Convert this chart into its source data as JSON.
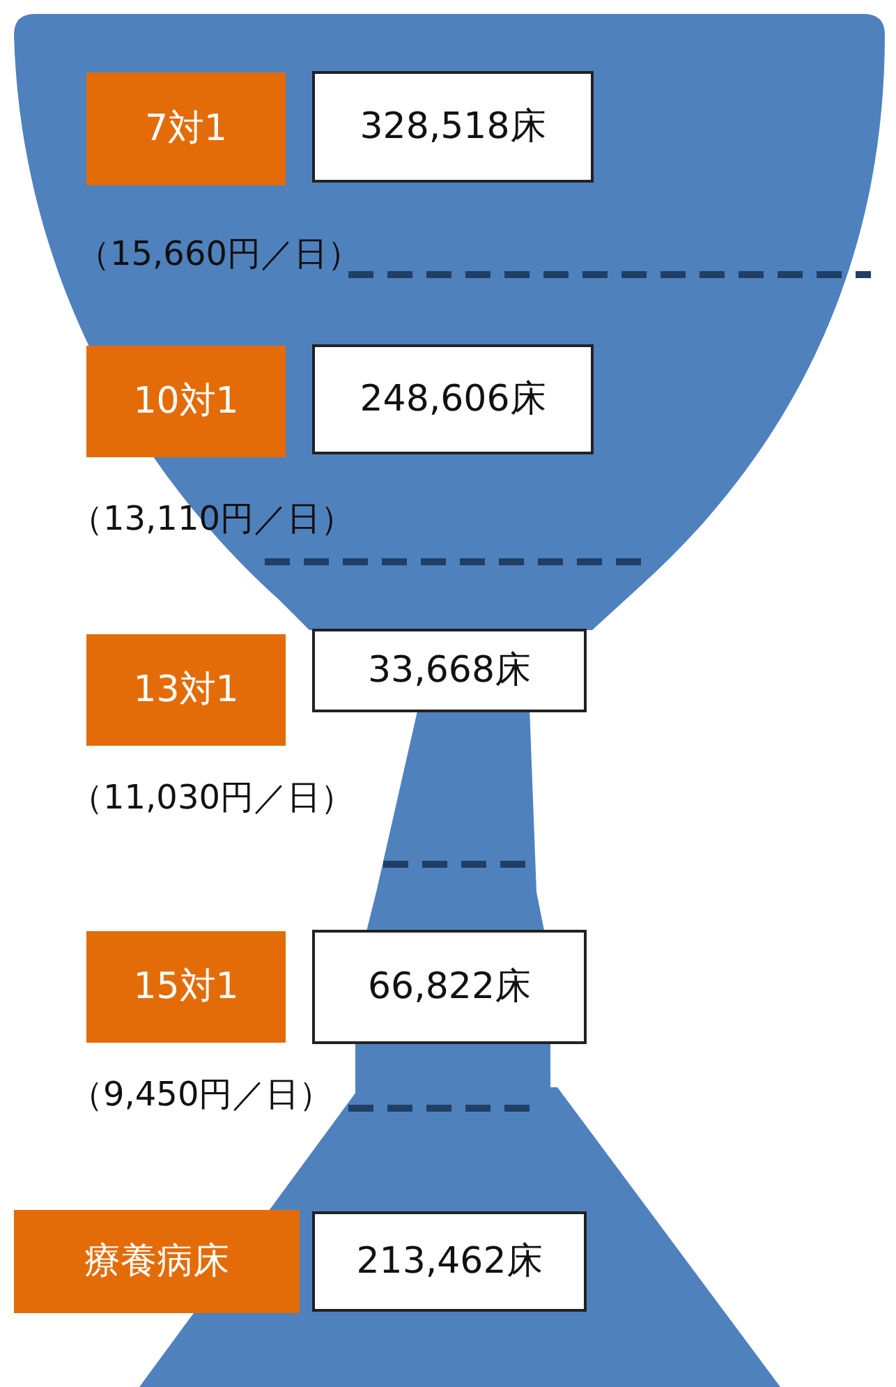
{
  "chart_data": {
    "type": "other",
    "categories": [
      "7対1",
      "10対1",
      "13対1",
      "15対1",
      "療養病床"
    ],
    "values": [
      328518,
      248606,
      33668,
      66822,
      213462
    ],
    "value_labels": [
      "328,518床",
      "248,606床",
      "33,668床",
      "66,822床",
      "213,462床"
    ],
    "annotations": [
      "（15,660円／日）",
      "（13,110円／日）",
      "（11,030円／日）",
      "（9,450円／日）"
    ]
  }
}
